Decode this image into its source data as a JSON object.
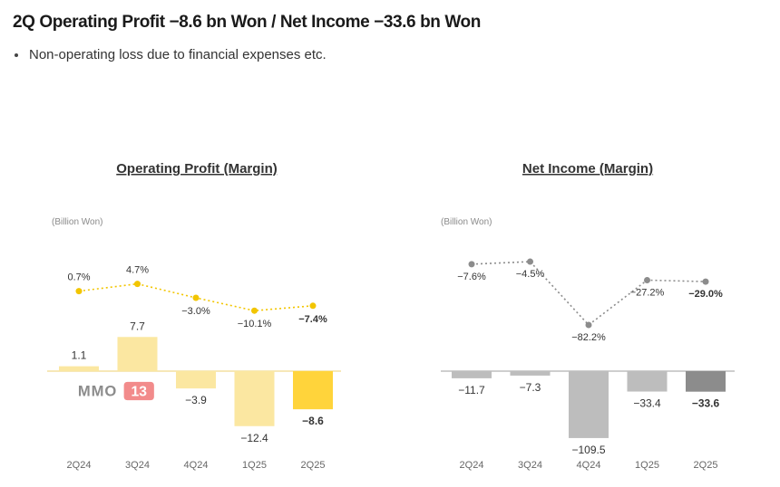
{
  "header": {
    "title": "2Q Operating Profit −8.6 bn Won / Net Income −33.6 bn Won",
    "bullet": "Non-operating loss due to financial expenses etc."
  },
  "watermark": {
    "text": "MMO",
    "badge": "13"
  },
  "colors": {
    "op_bar_light": "#FBE7A1",
    "op_bar_latest": "#FFD43B",
    "op_line": "#F2C500",
    "ni_bar": "#BDBDBD",
    "ni_bar_latest": "#8C8C8C",
    "ni_line": "#8C8C8C",
    "baseline": "#F3E0A0"
  },
  "chart_data": [
    {
      "type": "bar",
      "title": "Operating Profit (Margin)",
      "unit": "(Billion Won)",
      "categories": [
        "2Q24",
        "3Q24",
        "4Q24",
        "1Q25",
        "2Q25"
      ],
      "values": [
        1.1,
        7.7,
        -3.9,
        -12.4,
        -8.6
      ],
      "value_labels": [
        "1.1",
        "7.7",
        "−3.9",
        "−12.4",
        "−8.6"
      ],
      "margin": [
        0.7,
        4.7,
        -3.0,
        -10.1,
        -7.4
      ],
      "margin_labels": [
        "0.7%",
        "4.7%",
        "−3.0%",
        "−10.1%",
        "−7.4%"
      ],
      "highlight_last": true
    },
    {
      "type": "bar",
      "title": "Net Income (Margin)",
      "unit": "(Billion Won)",
      "categories": [
        "2Q24",
        "3Q24",
        "4Q24",
        "1Q25",
        "2Q25"
      ],
      "values": [
        -11.7,
        -7.3,
        -109.5,
        -33.4,
        -33.6
      ],
      "value_labels": [
        "−11.7",
        "−7.3",
        "−109.5",
        "−33.4",
        "−33.6"
      ],
      "margin": [
        -7.6,
        -4.5,
        -82.2,
        -27.2,
        -29.0
      ],
      "margin_labels": [
        "−7.6%",
        "−4.5%",
        "−82.2%",
        "−27.2%",
        "−29.0%"
      ],
      "highlight_last": true
    }
  ]
}
